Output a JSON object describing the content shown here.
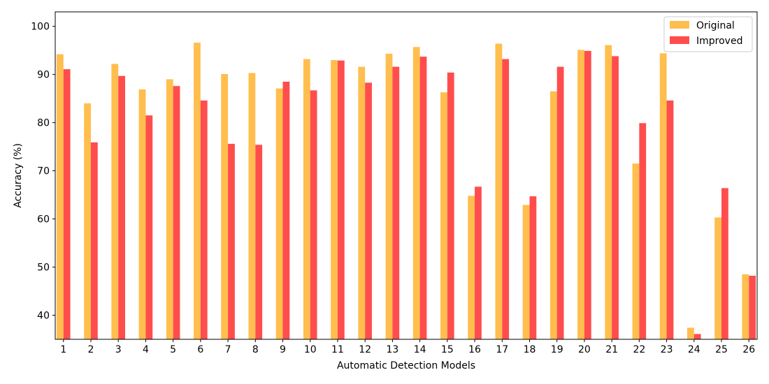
{
  "chart_data": {
    "type": "bar",
    "title": "",
    "xlabel": "Automatic Detection Models",
    "ylabel": "Accuracy (%)",
    "ylim": [
      35,
      103
    ],
    "yticks": [
      40,
      50,
      60,
      70,
      80,
      90,
      100
    ],
    "grid": false,
    "legend_position": "top-right",
    "categories": [
      "1",
      "2",
      "3",
      "4",
      "5",
      "6",
      "7",
      "8",
      "9",
      "10",
      "11",
      "12",
      "13",
      "14",
      "15",
      "16",
      "17",
      "18",
      "19",
      "20",
      "21",
      "22",
      "23",
      "24",
      "25",
      "26"
    ],
    "series": [
      {
        "name": "Original",
        "color": "#FFBE4D",
        "values": [
          94.2,
          84.0,
          92.2,
          86.9,
          89.0,
          96.6,
          90.1,
          90.3,
          87.1,
          93.2,
          93.0,
          91.6,
          94.3,
          95.7,
          86.3,
          64.8,
          96.4,
          62.9,
          86.5,
          95.1,
          96.1,
          71.5,
          94.4,
          37.4,
          60.3,
          48.5
        ]
      },
      {
        "name": "Improved",
        "color": "#FF4D4D",
        "values": [
          91.1,
          75.9,
          89.7,
          81.5,
          87.6,
          84.6,
          75.6,
          75.4,
          88.5,
          86.7,
          92.9,
          88.3,
          91.6,
          93.7,
          90.4,
          66.7,
          93.2,
          64.7,
          91.6,
          94.9,
          93.8,
          79.9,
          84.6,
          36.1,
          66.4,
          48.2
        ]
      }
    ]
  }
}
